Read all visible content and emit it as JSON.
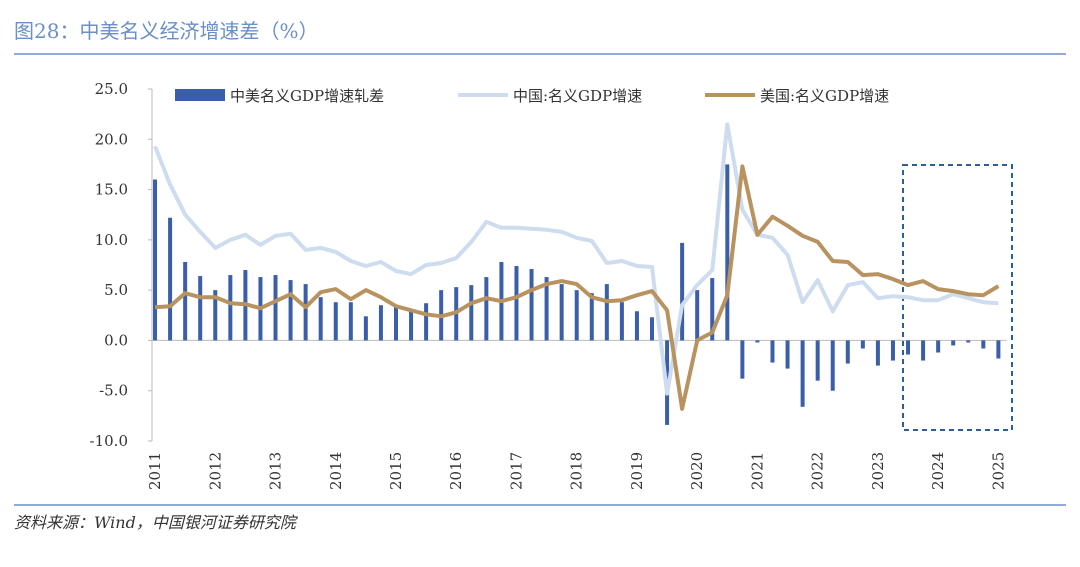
{
  "title": "图28：中美名义经济增速差（%）",
  "source": "资料来源：Wind，中国银河证券研究院",
  "chart_data": {
    "type": "bar_line",
    "categories": [
      "2011",
      null,
      null,
      null,
      "2012",
      null,
      null,
      null,
      "2013",
      null,
      null,
      null,
      "2014",
      null,
      null,
      null,
      "2015",
      null,
      null,
      null,
      "2016",
      null,
      null,
      null,
      "2017",
      null,
      null,
      null,
      "2018",
      null,
      null,
      null,
      "2019",
      null,
      null,
      null,
      "2020",
      null,
      null,
      null,
      "2021",
      null,
      null,
      null,
      "2022",
      null,
      null,
      null,
      "2023",
      null,
      null,
      null,
      "2024",
      null,
      null,
      null,
      "2025"
    ],
    "series": [
      {
        "name": "中美名义GDP增速轧差",
        "kind": "bar",
        "color": "#3b5ea8",
        "values": [
          16.0,
          12.2,
          7.8,
          6.4,
          5.0,
          6.5,
          7.0,
          6.3,
          6.5,
          6.0,
          5.6,
          4.3,
          3.8,
          3.8,
          2.4,
          3.5,
          3.4,
          3.0,
          3.7,
          5.0,
          5.3,
          5.5,
          6.3,
          7.8,
          7.4,
          7.1,
          6.3,
          5.6,
          5.0,
          4.7,
          5.6,
          3.8,
          2.9,
          2.3,
          -8.4,
          9.7,
          5.0,
          6.2,
          17.5,
          -3.8,
          -0.2,
          -2.2,
          -2.8,
          -6.6,
          -4.0,
          -5.0,
          -2.3,
          -0.8,
          -2.5,
          -2.0,
          -1.4,
          -2.0,
          -1.2,
          -0.5,
          -0.2,
          -0.8,
          -1.8
        ]
      },
      {
        "name": "中国:名义GDP增速",
        "kind": "line",
        "color": "#cddcee",
        "values": [
          19.3,
          15.5,
          12.5,
          10.8,
          9.2,
          10.0,
          10.5,
          9.5,
          10.4,
          10.6,
          9.0,
          9.2,
          8.8,
          7.9,
          7.4,
          7.8,
          6.9,
          6.6,
          7.5,
          7.7,
          8.2,
          9.8,
          11.8,
          11.2,
          11.2,
          11.1,
          11.0,
          10.8,
          10.2,
          9.9,
          7.7,
          7.9,
          7.4,
          7.3,
          -5.3,
          3.5,
          5.5,
          7.0,
          21.5,
          13.0,
          10.5,
          10.2,
          8.5,
          3.8,
          6.0,
          2.9,
          5.5,
          5.8,
          4.2,
          4.4,
          4.3,
          4.0,
          4.0,
          4.6,
          4.2,
          3.8,
          3.7
        ]
      },
      {
        "name": "美国:名义GDP增速",
        "kind": "line",
        "color": "#b8935f",
        "values": [
          3.3,
          3.4,
          4.7,
          4.3,
          4.3,
          3.7,
          3.6,
          3.2,
          3.9,
          4.6,
          3.3,
          4.8,
          5.1,
          4.1,
          5.0,
          4.3,
          3.4,
          3.0,
          2.6,
          2.4,
          2.8,
          3.7,
          4.2,
          3.9,
          4.3,
          5.0,
          5.6,
          5.9,
          5.6,
          4.3,
          3.9,
          4.0,
          4.5,
          4.9,
          3.0,
          -6.8,
          0.0,
          0.8,
          4.5,
          17.3,
          10.5,
          12.3,
          11.4,
          10.4,
          9.8,
          7.9,
          7.8,
          6.5,
          6.6,
          6.1,
          5.5,
          5.9,
          5.1,
          4.9,
          4.6,
          4.5,
          5.4
        ]
      }
    ],
    "ylim": [
      -10,
      25
    ],
    "yticks": [
      {
        "value": -10,
        "label": "-10.0"
      },
      {
        "value": -5,
        "label": "-5.0"
      },
      {
        "value": 0,
        "label": "0.0"
      },
      {
        "value": 5,
        "label": "5.0"
      },
      {
        "value": 10,
        "label": "10.0"
      },
      {
        "value": 15,
        "label": "15.0"
      },
      {
        "value": 20,
        "label": "20.0"
      },
      {
        "value": 25,
        "label": "25.0"
      }
    ]
  }
}
